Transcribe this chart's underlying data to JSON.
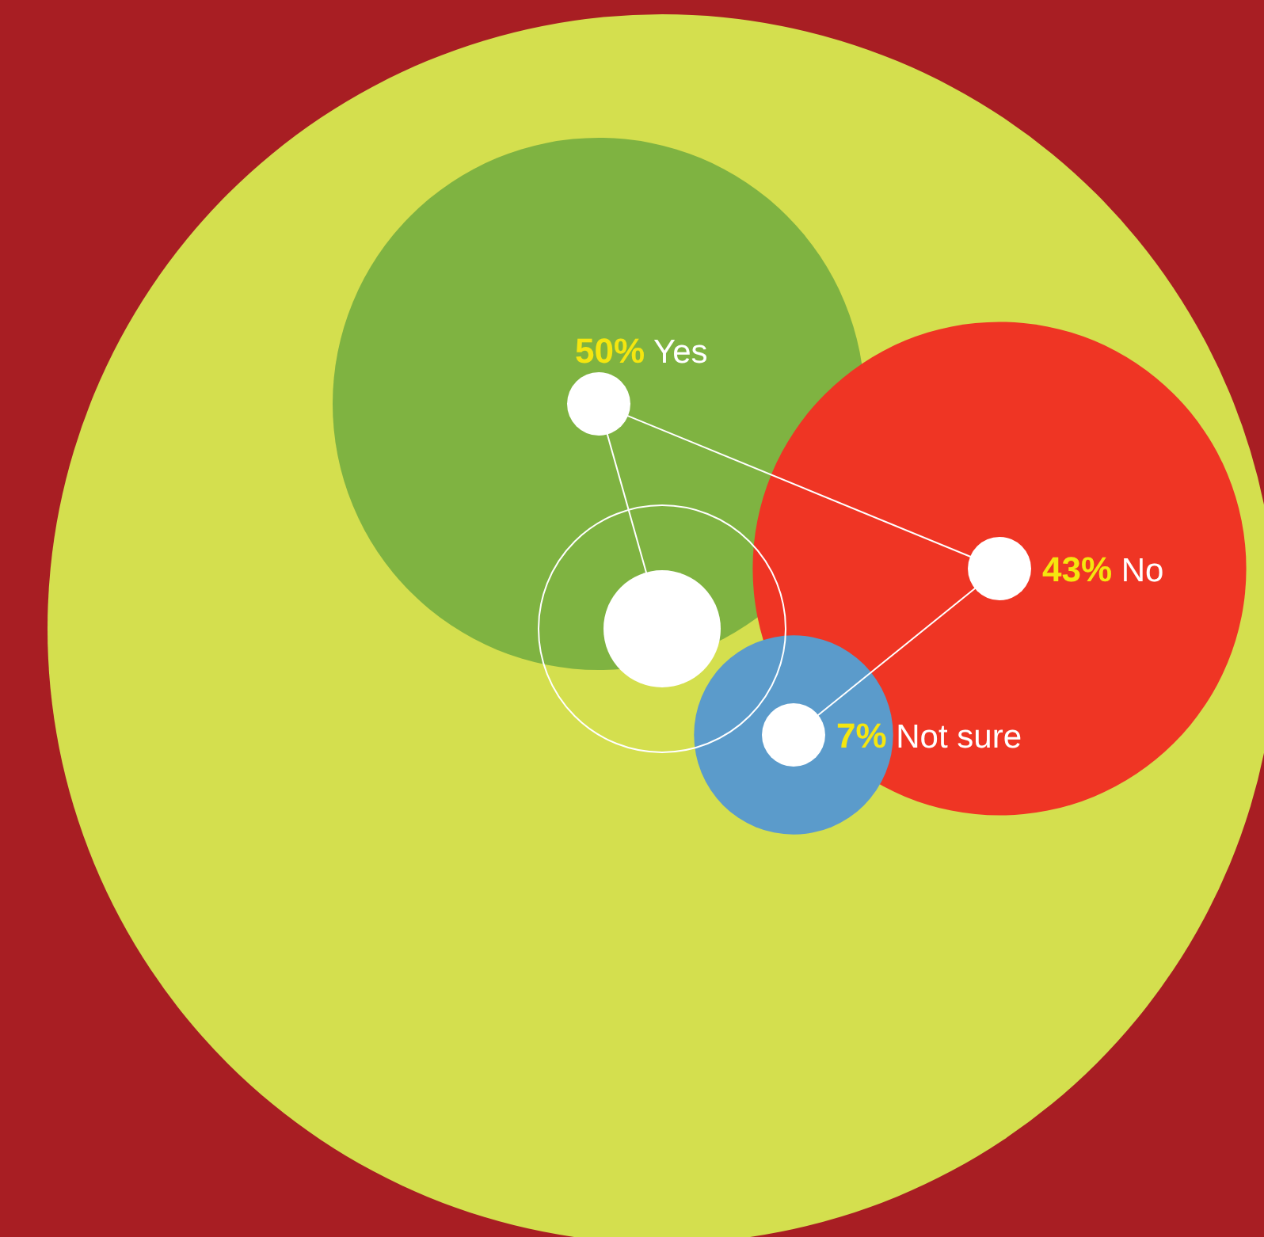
{
  "chart_data": {
    "type": "other",
    "categories": [
      "Yes",
      "No",
      "Not sure"
    ],
    "values": [
      50,
      43,
      7
    ],
    "value_labels": [
      "50%",
      "43%",
      "7%"
    ],
    "colors": [
      "#7fb341",
      "#ef3524",
      "#5b9bcb"
    ]
  }
}
